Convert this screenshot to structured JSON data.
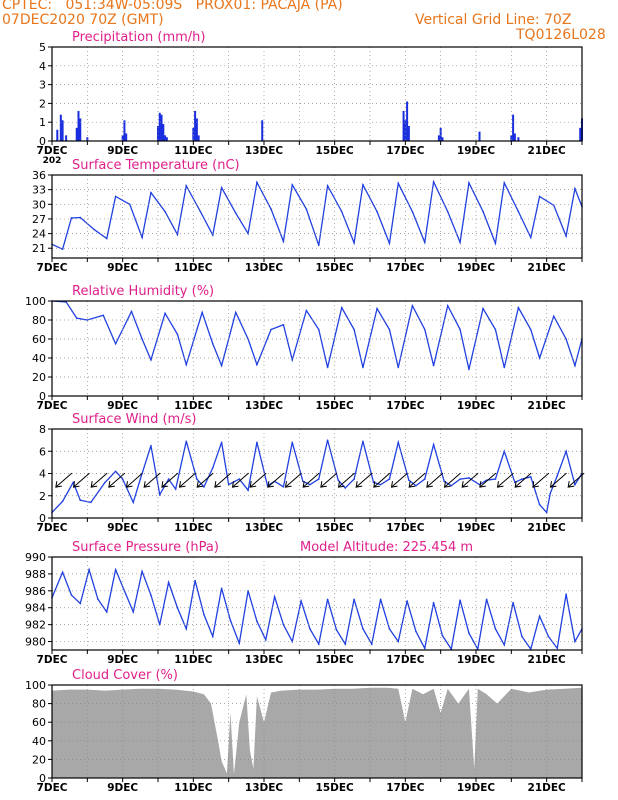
{
  "header": {
    "line1": "CPTEC:   051:34W-05:09S   PROX01: PACAJA (PA)",
    "line2": "07DEC2020 70Z (GMT)",
    "grid_note": "Vertical Grid Line: 70Z",
    "code": "TQ0126L028"
  },
  "colors": {
    "header": "#e8761c",
    "title": "#e0208a",
    "line": "#2040e0",
    "bar": "#1a2ee0",
    "cloud": "#a8a8a8",
    "grid": "#888888"
  },
  "chart_data": [
    {
      "type": "bar",
      "title": "Precipitation (mm/h)",
      "x_tick_labels": [
        "7DEC",
        "9DEC",
        "11DEC",
        "13DEC",
        "15DEC",
        "17DEC",
        "19DEC",
        "21DEC"
      ],
      "first_tick_fragment": "202",
      "xlim_days": [
        7,
        22
      ],
      "ylim": [
        0,
        5
      ],
      "yticks": [
        0,
        1,
        2,
        3,
        4,
        5
      ],
      "grid": true,
      "x": [
        7.15,
        7.25,
        7.3,
        7.4,
        7.7,
        7.75,
        7.8,
        8.0,
        9.0,
        9.05,
        9.1,
        10.0,
        10.05,
        10.1,
        10.15,
        10.2,
        10.25,
        11.0,
        11.05,
        11.1,
        11.15,
        12.95,
        16.95,
        17.0,
        17.05,
        17.1,
        17.95,
        18.0,
        18.05,
        19.1,
        20.0,
        20.05,
        20.1,
        20.2,
        21.95,
        22.0
      ],
      "values": [
        0.6,
        1.4,
        1.1,
        0.3,
        0.7,
        1.6,
        1.2,
        0.2,
        0.3,
        1.1,
        0.4,
        0.8,
        1.5,
        1.4,
        0.9,
        0.3,
        0.2,
        0.7,
        1.6,
        1.2,
        0.3,
        1.1,
        1.6,
        1.1,
        2.1,
        0.8,
        0.3,
        0.7,
        0.2,
        0.5,
        0.3,
        1.4,
        0.4,
        0.2,
        0.7,
        1.2
      ]
    },
    {
      "type": "line",
      "title": "Surface Temperature (nC)",
      "x_tick_labels": [
        "7DEC",
        "9DEC",
        "11DEC",
        "13DEC",
        "15DEC",
        "17DEC",
        "19DEC",
        "21DEC"
      ],
      "xlim_days": [
        7,
        22
      ],
      "ylim": [
        19,
        36
      ],
      "yticks": [
        21,
        24,
        27,
        30,
        33,
        36
      ],
      "grid": true,
      "x": [
        7.0,
        7.3,
        7.55,
        7.8,
        8.2,
        8.55,
        8.8,
        9.2,
        9.55,
        9.8,
        10.2,
        10.55,
        10.8,
        11.2,
        11.55,
        11.8,
        12.2,
        12.55,
        12.8,
        13.2,
        13.55,
        13.8,
        14.2,
        14.55,
        14.8,
        15.2,
        15.55,
        15.8,
        16.2,
        16.55,
        16.8,
        17.2,
        17.55,
        17.8,
        18.2,
        18.55,
        18.8,
        19.2,
        19.55,
        19.8,
        20.2,
        20.55,
        20.8,
        21.2,
        21.55,
        21.8,
        22.0
      ],
      "y": [
        21.8,
        20.8,
        27.2,
        27.3,
        24.8,
        23.0,
        31.6,
        30.0,
        23.2,
        32.4,
        28.5,
        23.8,
        33.8,
        28.5,
        23.7,
        33.4,
        28.2,
        24.0,
        34.5,
        29.0,
        22.4,
        34.0,
        29.0,
        21.6,
        33.8,
        28.5,
        22.1,
        34.0,
        28.5,
        22.0,
        34.3,
        28.5,
        22.2,
        34.6,
        28.5,
        22.2,
        34.4,
        28.5,
        22.0,
        34.4,
        28.5,
        23.2,
        31.6,
        29.8,
        23.5,
        33.2,
        29.5
      ]
    },
    {
      "type": "line",
      "title": "Relative Humidity (%)",
      "x_tick_labels": [
        "7DEC",
        "9DEC",
        "11DEC",
        "13DEC",
        "15DEC",
        "17DEC",
        "19DEC",
        "21DEC"
      ],
      "xlim_days": [
        7,
        22
      ],
      "ylim": [
        0,
        100
      ],
      "yticks": [
        0,
        20,
        40,
        60,
        80,
        100
      ],
      "grid": true,
      "x": [
        7.0,
        7.4,
        7.7,
        8.0,
        8.45,
        8.8,
        9.25,
        9.55,
        9.8,
        10.2,
        10.55,
        10.8,
        11.25,
        11.55,
        11.8,
        12.2,
        12.55,
        12.8,
        13.2,
        13.55,
        13.8,
        14.2,
        14.55,
        14.8,
        15.2,
        15.55,
        15.8,
        16.2,
        16.55,
        16.8,
        17.2,
        17.55,
        17.8,
        18.2,
        18.55,
        18.8,
        19.2,
        19.55,
        19.8,
        20.2,
        20.55,
        20.8,
        21.2,
        21.55,
        21.8,
        22.0
      ],
      "y": [
        100,
        99,
        82,
        80,
        85,
        55,
        89,
        60,
        38,
        87,
        65,
        33,
        88,
        55,
        32,
        88,
        60,
        33,
        70,
        75,
        38,
        90,
        70,
        30,
        93,
        70,
        30,
        92,
        70,
        30,
        95,
        70,
        32,
        95,
        70,
        28,
        92,
        70,
        30,
        93,
        70,
        40,
        84,
        60,
        32,
        60
      ]
    },
    {
      "type": "line",
      "title": "Surface Wind (m/s)",
      "x_tick_labels": [
        "7DEC",
        "9DEC",
        "11DEC",
        "13DEC",
        "15DEC",
        "17DEC",
        "19DEC",
        "21DEC"
      ],
      "xlim_days": [
        7,
        22
      ],
      "ylim": [
        0,
        8
      ],
      "yticks": [
        0,
        2,
        4,
        6,
        8
      ],
      "grid": true,
      "x": [
        7.0,
        7.3,
        7.6,
        7.8,
        8.1,
        8.5,
        8.8,
        9.0,
        9.3,
        9.5,
        9.8,
        10.05,
        10.3,
        10.5,
        10.8,
        11.1,
        11.3,
        11.55,
        11.8,
        12.0,
        12.3,
        12.55,
        12.8,
        13.1,
        13.3,
        13.55,
        13.8,
        14.1,
        14.3,
        14.55,
        14.8,
        15.1,
        15.3,
        15.55,
        15.8,
        16.1,
        16.3,
        16.55,
        16.8,
        17.1,
        17.3,
        17.55,
        17.8,
        18.1,
        18.3,
        18.55,
        18.8,
        19.1,
        19.3,
        19.55,
        19.8,
        20.1,
        20.3,
        20.55,
        20.8,
        21.0,
        21.1,
        21.3,
        21.55,
        21.8,
        22.0
      ],
      "y": [
        0.5,
        1.5,
        3.2,
        1.6,
        1.4,
        3.2,
        4.2,
        3.5,
        1.4,
        3.5,
        6.5,
        2.1,
        3.5,
        2.6,
        6.9,
        3.5,
        2.8,
        4.5,
        6.8,
        3.0,
        3.5,
        2.5,
        6.8,
        2.9,
        3.3,
        2.8,
        6.8,
        3.3,
        3.0,
        3.5,
        7.0,
        3.4,
        2.7,
        3.5,
        6.9,
        3.2,
        3.0,
        3.5,
        6.8,
        3.4,
        2.9,
        3.5,
        6.6,
        3.3,
        2.9,
        3.5,
        3.6,
        3.0,
        3.4,
        3.5,
        6.0,
        3.2,
        3.5,
        3.7,
        1.2,
        0.5,
        2.2,
        3.8,
        6.0,
        3.0,
        4.0
      ]
    },
    {
      "type": "line",
      "title": "Surface Pressure (hPa)",
      "annotation": "Model Altitude: 225.454 m",
      "x_tick_labels": [
        "7DEC",
        "9DEC",
        "11DEC",
        "13DEC",
        "15DEC",
        "17DEC",
        "19DEC",
        "21DEC"
      ],
      "xlim_days": [
        7,
        22
      ],
      "ylim": [
        979,
        990
      ],
      "yticks": [
        980,
        982,
        984,
        986,
        988,
        990
      ],
      "grid": true,
      "x": [
        7.0,
        7.3,
        7.55,
        7.8,
        8.05,
        8.3,
        8.55,
        8.8,
        9.05,
        9.3,
        9.55,
        9.8,
        10.05,
        10.3,
        10.55,
        10.8,
        11.05,
        11.3,
        11.55,
        11.8,
        12.05,
        12.3,
        12.55,
        12.8,
        13.05,
        13.3,
        13.55,
        13.8,
        14.05,
        14.3,
        14.55,
        14.8,
        15.05,
        15.3,
        15.55,
        15.8,
        16.05,
        16.3,
        16.55,
        16.8,
        17.05,
        17.3,
        17.55,
        17.8,
        18.05,
        18.3,
        18.55,
        18.8,
        19.05,
        19.3,
        19.55,
        19.8,
        20.05,
        20.3,
        20.55,
        20.8,
        21.05,
        21.3,
        21.55,
        21.8,
        22.0
      ],
      "y": [
        985.2,
        988.2,
        985.5,
        984.5,
        988.5,
        985.0,
        983.5,
        988.5,
        986.0,
        983.5,
        988.3,
        985.5,
        982.0,
        987.0,
        984.0,
        981.5,
        987.2,
        983.2,
        980.6,
        986.3,
        982.5,
        979.8,
        986.0,
        982.4,
        980.2,
        985.3,
        982.0,
        980.0,
        984.8,
        981.5,
        979.7,
        985.0,
        981.4,
        979.7,
        985.0,
        981.5,
        979.7,
        985.0,
        981.5,
        980.0,
        984.8,
        981.2,
        979.2,
        984.6,
        980.7,
        979.1,
        984.9,
        981.0,
        979.1,
        985.0,
        981.5,
        979.6,
        984.6,
        980.6,
        979.1,
        983.0,
        980.6,
        979.2,
        985.6,
        980.0,
        981.5
      ]
    },
    {
      "type": "area",
      "title": "Cloud Cover (%)",
      "x_tick_labels": [
        "7DEC",
        "9DEC",
        "11DEC",
        "13DEC",
        "15DEC",
        "17DEC",
        "19DEC",
        "21DEC"
      ],
      "xlim_days": [
        7,
        22
      ],
      "ylim": [
        0,
        100
      ],
      "yticks": [
        0,
        20,
        40,
        60,
        80,
        100
      ],
      "grid": true,
      "x": [
        7.0,
        7.5,
        8.0,
        8.5,
        9.0,
        9.5,
        10.0,
        10.5,
        11.0,
        11.3,
        11.5,
        11.6,
        11.7,
        11.8,
        11.95,
        12.05,
        12.15,
        12.3,
        12.5,
        12.6,
        12.7,
        12.8,
        13.0,
        13.2,
        13.5,
        14.0,
        14.5,
        15.0,
        15.5,
        16.0,
        16.5,
        16.8,
        17.0,
        17.2,
        17.5,
        17.8,
        18.0,
        18.2,
        18.5,
        18.8,
        18.95,
        19.05,
        19.3,
        19.6,
        20.0,
        20.5,
        21.0,
        21.5,
        22.0
      ],
      "y": [
        94,
        95,
        95,
        94,
        95,
        96,
        96,
        95,
        93,
        90,
        80,
        60,
        40,
        18,
        5,
        70,
        4,
        60,
        90,
        30,
        10,
        88,
        60,
        92,
        94,
        95,
        95,
        96,
        96,
        97,
        97,
        96,
        60,
        96,
        90,
        96,
        70,
        96,
        80,
        96,
        10,
        96,
        90,
        80,
        96,
        92,
        95,
        96,
        97
      ]
    }
  ]
}
